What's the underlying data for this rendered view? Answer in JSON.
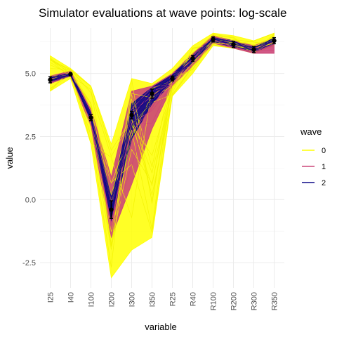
{
  "chart_data": {
    "type": "line",
    "title": "Simulator evaluations at wave points: log-scale",
    "xlabel": "variable",
    "ylabel": "value",
    "categories": [
      "I25",
      "I40",
      "I100",
      "I200",
      "I300",
      "I350",
      "R25",
      "R40",
      "R100",
      "R200",
      "R300",
      "R350"
    ],
    "ylim": [
      -3.5,
      6.8
    ],
    "yticks": [
      -2.5,
      0.0,
      2.5,
      5.0
    ],
    "ytick_labels": [
      "-2.5",
      "0.0",
      "2.5",
      "5.0"
    ],
    "grid": true,
    "legend": {
      "title": "wave",
      "placement": "right",
      "entries": [
        {
          "label": "0",
          "color": "#ffff00"
        },
        {
          "label": "1",
          "color": "#cc4678"
        },
        {
          "label": "2",
          "color": "#0d0887"
        }
      ]
    },
    "series": [
      {
        "name": "0",
        "color": "#ffff00",
        "lower": [
          4.3,
          4.8,
          2.2,
          -3.1,
          -2.0,
          -1.5,
          4.1,
          5.0,
          6.1,
          6.0,
          5.8,
          6.1
        ],
        "upper": [
          5.7,
          5.2,
          4.5,
          2.2,
          4.8,
          4.6,
          5.2,
          6.1,
          6.6,
          6.5,
          6.3,
          6.6
        ]
      },
      {
        "name": "1",
        "color": "#cc4678",
        "lower": [
          4.6,
          4.9,
          2.9,
          -1.5,
          0.6,
          2.8,
          4.5,
          5.3,
          6.2,
          6.0,
          5.8,
          5.8
        ],
        "upper": [
          4.9,
          5.1,
          3.6,
          0.9,
          4.3,
          4.5,
          5.0,
          5.8,
          6.5,
          6.3,
          6.1,
          6.4
        ]
      },
      {
        "name": "2",
        "color": "#0d0887",
        "lower": [
          4.65,
          4.9,
          3.05,
          -0.9,
          2.4,
          3.8,
          4.65,
          5.45,
          6.25,
          6.05,
          5.85,
          6.15
        ],
        "upper": [
          4.85,
          5.05,
          3.45,
          0.1,
          3.8,
          4.45,
          4.95,
          5.75,
          6.45,
          6.3,
          6.05,
          6.4
        ],
        "mean": [
          4.75,
          4.97,
          3.25,
          -0.4,
          3.35,
          4.2,
          4.8,
          5.6,
          6.35,
          6.15,
          5.95,
          6.3
        ],
        "error": [
          0.12,
          0.06,
          0.12,
          0.35,
          0.15,
          0.18,
          0.1,
          0.12,
          0.1,
          0.12,
          0.12,
          0.12
        ]
      }
    ]
  }
}
